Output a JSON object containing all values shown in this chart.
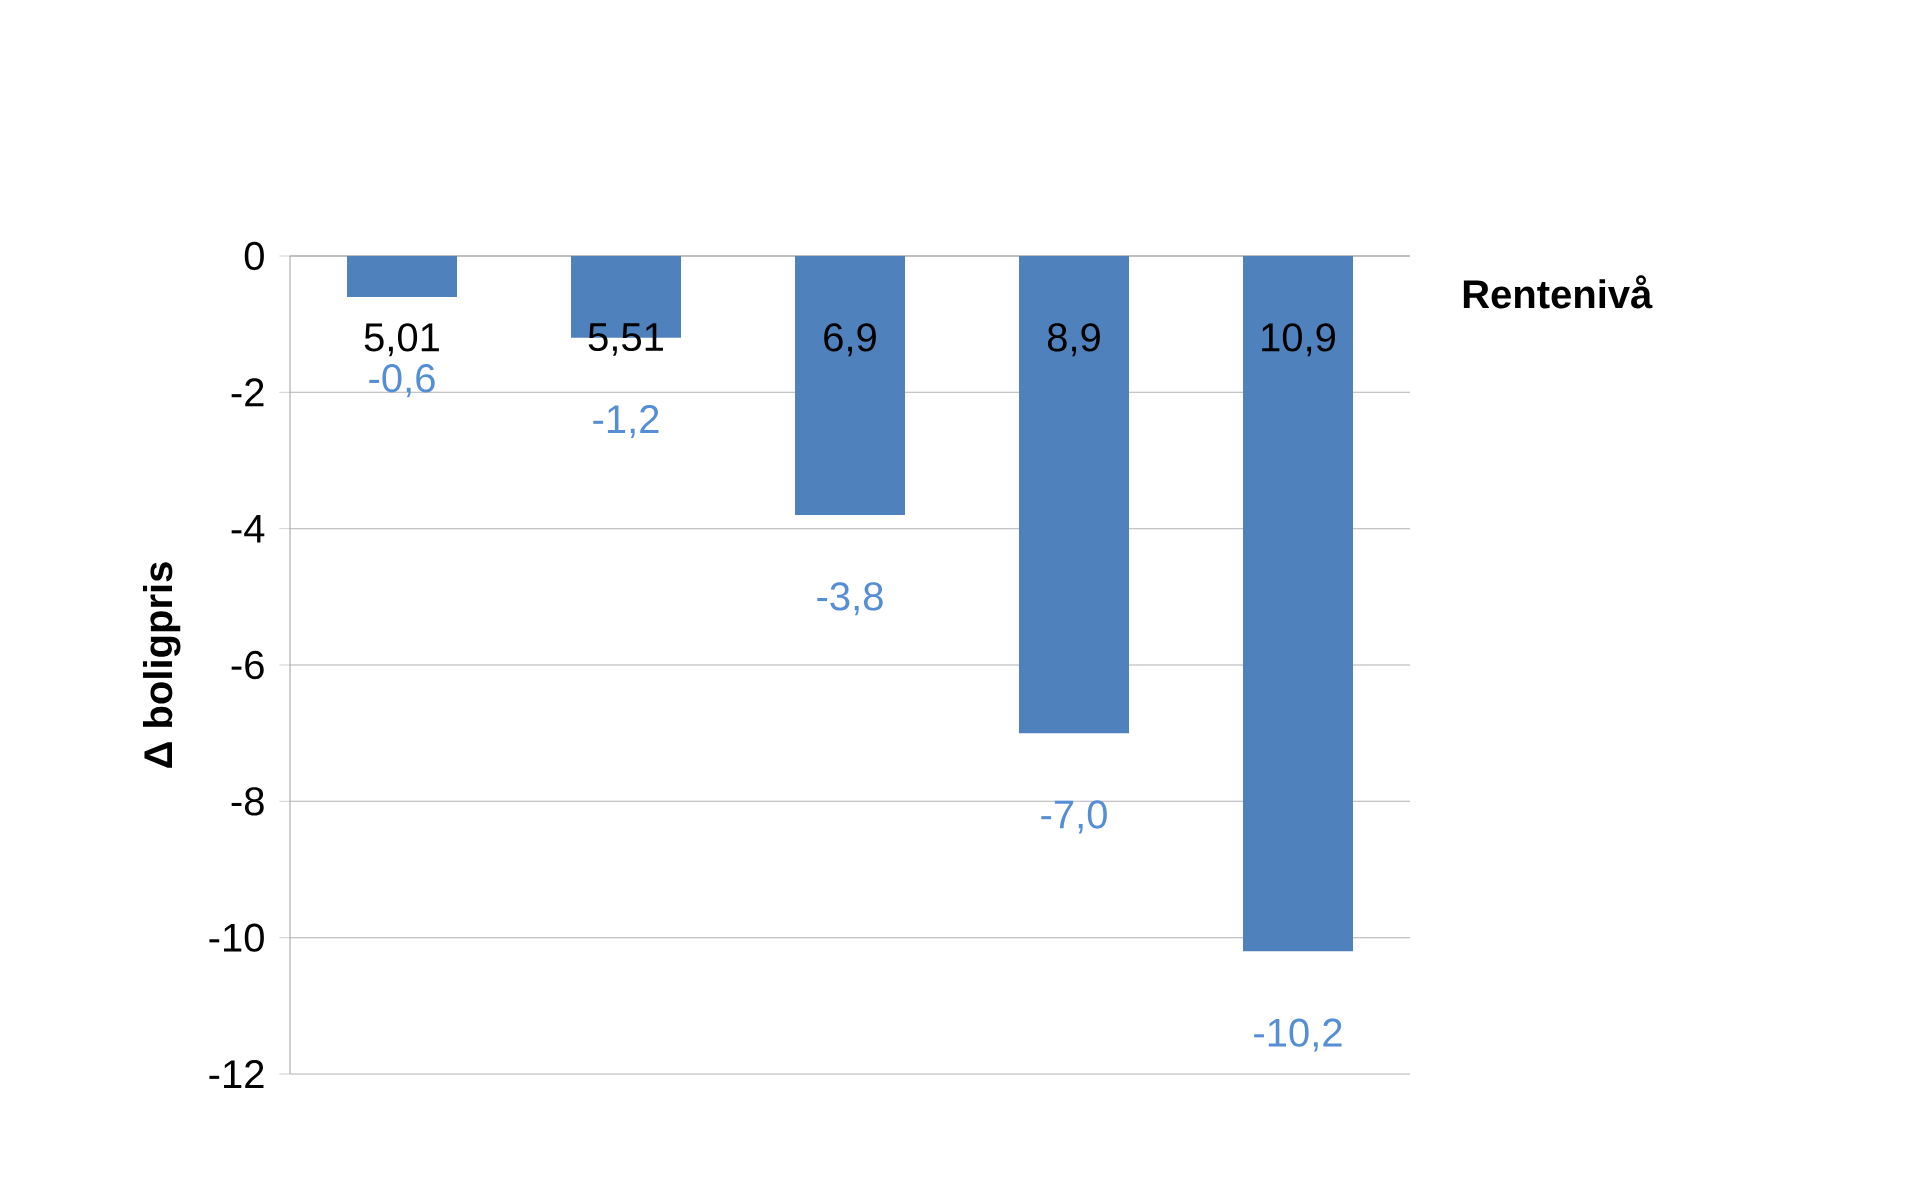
{
  "chart_data": {
    "type": "bar",
    "xlabel": "Rentenivå",
    "ylabel": "Δ boligpris",
    "categories": [
      "5,01",
      "5,51",
      "6,9",
      "8,9",
      "10,9"
    ],
    "values": [
      -0.6,
      -1.2,
      -3.8,
      -7.0,
      -10.2
    ],
    "value_labels": [
      "-0,6",
      "-1,2",
      "-3,8",
      "-7,0",
      "-10,2"
    ],
    "color": "#4f81bd",
    "ylim": [
      -12,
      0
    ],
    "yticks": [
      0,
      -2,
      -4,
      -6,
      -8,
      -10,
      -12
    ],
    "grid": "y"
  }
}
